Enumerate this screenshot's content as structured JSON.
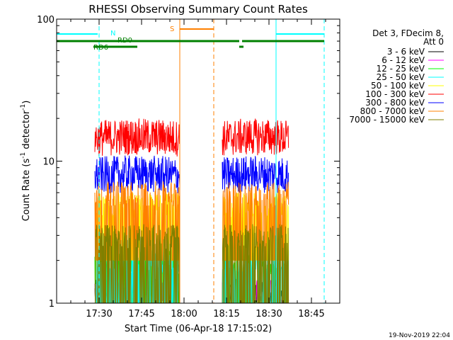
{
  "chart_data": {
    "type": "line",
    "title": "RHESSI Observing Summary Count Rates",
    "xlabel": "Start Time (06-Apr-18 17:15:02)",
    "ylabel_main": "Count Rate (s",
    "ylabel_sup1": "-1",
    "ylabel_mid": " detector",
    "ylabel_sup2": "-1",
    "ylabel_end": ")",
    "yscale": "log",
    "ylim": [
      1,
      100
    ],
    "xlim_minutes_after_1715": [
      0,
      100
    ],
    "x_ticks": [
      "17:30",
      "17:45",
      "18:00",
      "18:15",
      "18:30",
      "18:45"
    ],
    "x_tick_minutes": [
      15,
      30,
      45,
      60,
      75,
      90
    ],
    "y_ticks": [
      "1",
      "10",
      "100"
    ],
    "y_tick_values": [
      1,
      10,
      100
    ],
    "legend_header_1": "Det 3, FDecim 8,",
    "legend_header_2": "Att 0",
    "footer_date": "19-Nov-2019 22:04",
    "series": [
      {
        "name": "3 - 6 keV",
        "color": "#000000",
        "levels": [
          1,
          1.5
        ]
      },
      {
        "name": "6 - 12 keV",
        "color": "#ff00ff",
        "levels": [
          1,
          1.5
        ]
      },
      {
        "name": "12 - 25 keV",
        "color": "#00ff00",
        "levels": [
          1,
          2
        ]
      },
      {
        "name": "25 - 50 keV",
        "color": "#00ffff",
        "levels": [
          1,
          2
        ]
      },
      {
        "name": "50 - 100 keV",
        "color": "#ffff00",
        "levels": [
          2,
          5
        ]
      },
      {
        "name": "100 - 300 keV",
        "color": "#ff0000",
        "levels": [
          11,
          20
        ]
      },
      {
        "name": "300 - 800 keV",
        "color": "#0000ff",
        "levels": [
          6,
          11
        ]
      },
      {
        "name": "800 - 7000 keV",
        "color": "#ff8000",
        "levels": [
          2,
          6
        ]
      },
      {
        "name": "7000 - 15000 keV",
        "color": "#808000",
        "levels": [
          1,
          3
        ]
      }
    ],
    "data_intervals_minutes": [
      [
        13.5,
        43.5
      ],
      [
        58.5,
        82.0
      ]
    ],
    "flags": {
      "N_label": "N",
      "S_label": "S",
      "RD0_label": "RD0",
      "RD6_label": "RD6",
      "night_color": "#00ffff",
      "saa_color": "#ff8000",
      "rd_color": "#008000"
    }
  }
}
